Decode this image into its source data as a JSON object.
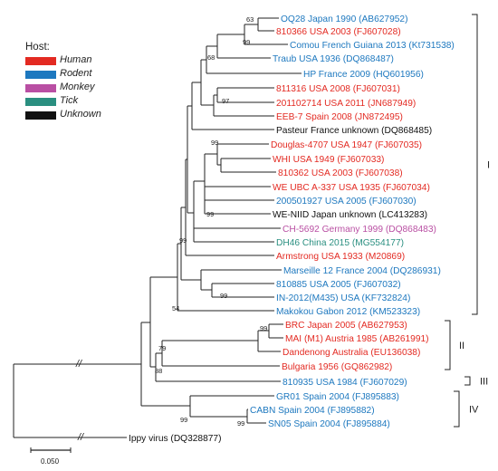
{
  "legend": {
    "title": "Host:",
    "items": [
      {
        "label": "Human",
        "color": "#e32a22"
      },
      {
        "label": "Rodent",
        "color": "#1d78bf"
      },
      {
        "label": "Monkey",
        "color": "#b94fa3"
      },
      {
        "label": "Tick",
        "color": "#2a8f80"
      },
      {
        "label": "Unknown",
        "color": "#111111"
      }
    ]
  },
  "leaves": [
    {
      "id": "OQ28",
      "label": "OQ28 Japan 1990 (AB627952)",
      "host": "Rodent"
    },
    {
      "id": "810366",
      "label": "810366 USA 2003 (FJ607028)",
      "host": "Human"
    },
    {
      "id": "Comou",
      "label": "Comou French Guiana 2013 (Kt731538)",
      "host": "Rodent"
    },
    {
      "id": "Traub",
      "label": "Traub USA 1936 (DQ868487)",
      "host": "Rodent"
    },
    {
      "id": "HP",
      "label": "HP France 2009 (HQ601956)",
      "host": "Rodent"
    },
    {
      "id": "811316",
      "label": "811316 USA 2008 (FJ607031)",
      "host": "Human"
    },
    {
      "id": "201102714",
      "label": "201102714 USA 2011 (JN687949)",
      "host": "Human"
    },
    {
      "id": "EEB7",
      "label": "EEB-7 Spain 2008 (JN872495)",
      "host": "Human"
    },
    {
      "id": "Pasteur",
      "label": "Pasteur France unknown (DQ868485)",
      "host": "Unknown"
    },
    {
      "id": "Douglas",
      "label": "Douglas-4707 USA 1947 (FJ607035)",
      "host": "Human"
    },
    {
      "id": "WHI",
      "label": "WHI USA 1949 (FJ607033)",
      "host": "Human"
    },
    {
      "id": "810362",
      "label": "810362 USA 2003 (FJ607038)",
      "host": "Human"
    },
    {
      "id": "WEUBC",
      "label": "WE UBC A-337 USA 1935 (FJ607034)",
      "host": "Human"
    },
    {
      "id": "200501927",
      "label": "200501927 USA 2005 (FJ607030)",
      "host": "Rodent"
    },
    {
      "id": "WENIID",
      "label": "WE-NIID Japan unknown (LC413283)",
      "host": "Unknown"
    },
    {
      "id": "CH5692",
      "label": "CH-5692 Germany 1999 (DQ868483)",
      "host": "Monkey"
    },
    {
      "id": "DH46",
      "label": "DH46 China 2015 (MG554177)",
      "host": "Tick"
    },
    {
      "id": "Armstrong",
      "label": "Armstrong USA 1933 (M20869)",
      "host": "Human"
    },
    {
      "id": "Marseille",
      "label": "Marseille 12 France 2004 (DQ286931)",
      "host": "Rodent"
    },
    {
      "id": "810885",
      "label": "810885 USA 2005 (FJ607032)",
      "host": "Rodent"
    },
    {
      "id": "IN2012",
      "label": "IN-2012(M435) USA (KF732824)",
      "host": "Rodent"
    },
    {
      "id": "Makokou",
      "label": "Makokou Gabon 2012 (KM523323)",
      "host": "Rodent"
    },
    {
      "id": "BRC",
      "label": "BRC Japan 2005 (AB627953)",
      "host": "Human"
    },
    {
      "id": "MAI",
      "label": "MAI (M1) Austria 1985 (AB261991)",
      "host": "Human"
    },
    {
      "id": "Dandenong",
      "label": "Dandenong Australia (EU136038)",
      "host": "Human"
    },
    {
      "id": "Bulgaria",
      "label": "Bulgaria 1956 (GQ862982)",
      "host": "Human"
    },
    {
      "id": "810935",
      "label": "810935 USA 1984 (FJ607029)",
      "host": "Rodent"
    },
    {
      "id": "GR01",
      "label": "GR01 Spain 2004 (FJ895883)",
      "host": "Rodent"
    },
    {
      "id": "CABN",
      "label": "CABN Spain 2004 (FJ895882)",
      "host": "Rodent"
    },
    {
      "id": "SN05",
      "label": "SN05 Spain 2004 (FJ895884)",
      "host": "Rodent"
    },
    {
      "id": "Ippy",
      "label": "Ippy virus (DQ328877)",
      "host": "Unknown"
    }
  ],
  "bootstrap_labels": [
    "63",
    "99",
    "68",
    "97",
    "99",
    "99",
    "99",
    "54",
    "99",
    "79",
    "88",
    "99",
    "99",
    "99"
  ],
  "break_marks": [
    "//",
    "//"
  ],
  "clades": [
    {
      "label": "I"
    },
    {
      "label": "II"
    },
    {
      "label": "III"
    },
    {
      "label": "IV"
    }
  ],
  "scale_bar": {
    "label": "0.050",
    "value": 0.05
  }
}
